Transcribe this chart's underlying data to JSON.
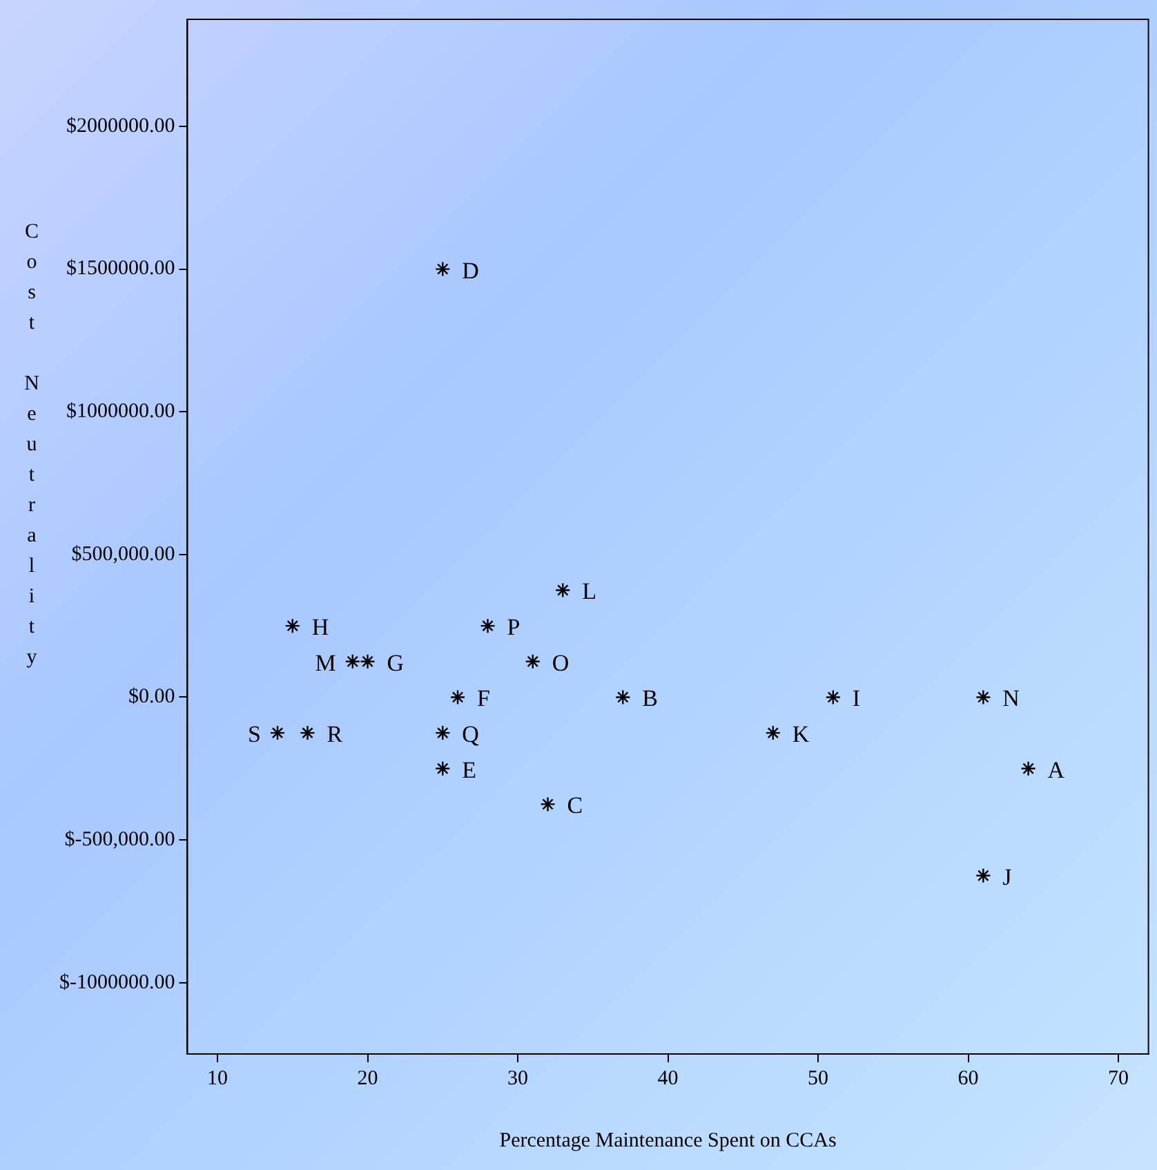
{
  "chart_data": {
    "type": "scatter",
    "xlabel": "Percentage Maintenance Spent on CCAs",
    "ylabel": "Cost Neutrality",
    "marker": "cross",
    "xlim": [
      8,
      72
    ],
    "xticks": [
      10,
      20,
      30,
      40,
      50,
      60,
      70
    ],
    "ylim": [
      -1250000,
      2375000
    ],
    "yticks": [
      {
        "value": -1000000,
        "label": "$-1000000.00"
      },
      {
        "value": -500000,
        "label": "$-500,000.00"
      },
      {
        "value": 0,
        "label": "$0.00"
      },
      {
        "value": 500000,
        "label": "$500,000.00"
      },
      {
        "value": 1000000,
        "label": "$1000000.00"
      },
      {
        "value": 1500000,
        "label": "$1500000.00"
      },
      {
        "value": 2000000,
        "label": "$2000000.00"
      }
    ],
    "series": [
      {
        "name": "A",
        "color": "#000000",
        "x": [
          64
        ],
        "values": [
          -250000
        ]
      },
      {
        "name": "B",
        "color": "#000000",
        "x": [
          37
        ],
        "values": [
          0
        ]
      },
      {
        "name": "C",
        "color": "#000000",
        "x": [
          32
        ],
        "values": [
          -375000
        ]
      },
      {
        "name": "D",
        "color": "#000000",
        "x": [
          25
        ],
        "values": [
          1500000
        ]
      },
      {
        "name": "E",
        "color": "#000000",
        "x": [
          25
        ],
        "values": [
          -250000
        ]
      },
      {
        "name": "F",
        "color": "#000000",
        "x": [
          26
        ],
        "values": [
          0
        ]
      },
      {
        "name": "G",
        "color": "#000000",
        "x": [
          20
        ],
        "values": [
          125000
        ]
      },
      {
        "name": "H",
        "color": "#000000",
        "x": [
          15
        ],
        "values": [
          250000
        ]
      },
      {
        "name": "I",
        "color": "#000000",
        "x": [
          51
        ],
        "values": [
          0
        ]
      },
      {
        "name": "J",
        "color": "#000000",
        "x": [
          61
        ],
        "values": [
          -625000
        ]
      },
      {
        "name": "K",
        "color": "#000000",
        "x": [
          47
        ],
        "values": [
          -125000
        ]
      },
      {
        "name": "L",
        "color": "#000000",
        "x": [
          33
        ],
        "values": [
          375000
        ]
      },
      {
        "name": "M",
        "color": "#000000",
        "x": [
          19
        ],
        "values": [
          125000
        ]
      },
      {
        "name": "N",
        "color": "#000000",
        "x": [
          61
        ],
        "values": [
          0
        ]
      },
      {
        "name": "O",
        "color": "#000000",
        "x": [
          31
        ],
        "values": [
          125000
        ]
      },
      {
        "name": "P",
        "color": "#000000",
        "x": [
          28
        ],
        "values": [
          250000
        ]
      },
      {
        "name": "Q",
        "color": "#000000",
        "x": [
          25
        ],
        "values": [
          -125000
        ]
      },
      {
        "name": "R",
        "color": "#000000",
        "x": [
          16
        ],
        "values": [
          -125000
        ]
      },
      {
        "name": "S",
        "color": "#000000",
        "x": [
          14
        ],
        "values": [
          -125000
        ]
      }
    ]
  }
}
